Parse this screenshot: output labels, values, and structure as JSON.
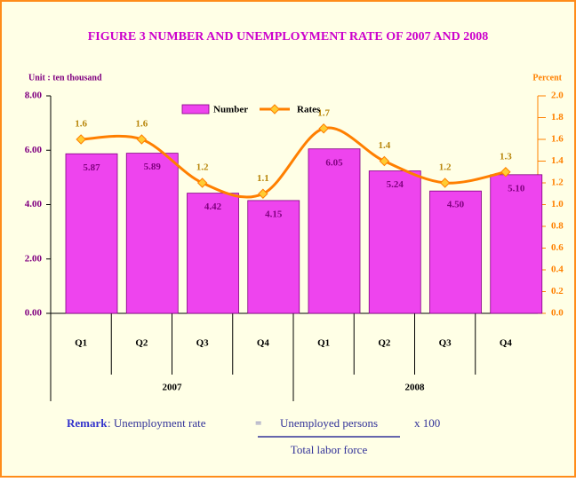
{
  "chart_data": {
    "type": "bar_line",
    "title": "FIGURE 3 NUMBER AND UNEMPLOYMENT RATE OF 2007 AND 2008",
    "y_axis_label": "Unit : ten thousand",
    "y2_axis_label": "Percent",
    "categories": [
      "Q1",
      "Q2",
      "Q3",
      "Q4",
      "Q1",
      "Q2",
      "Q3",
      "Q4"
    ],
    "groups": [
      "2007",
      "2008"
    ],
    "series": [
      {
        "name": "Number",
        "type": "bar",
        "color": "#ee44ee",
        "values": [
          5.87,
          5.89,
          4.42,
          4.15,
          6.05,
          5.24,
          4.5,
          5.1
        ],
        "value_labels": [
          "5.87",
          "5.89",
          "4.42",
          "4.15",
          "6.05",
          "5.24",
          "4.50",
          "5.10"
        ]
      },
      {
        "name": "Rates",
        "type": "line",
        "axis": "y2",
        "color": "#ff7f00",
        "values": [
          1.6,
          1.6,
          1.2,
          1.1,
          1.7,
          1.4,
          1.2,
          1.3
        ]
      }
    ],
    "ylim": [
      0,
      8
    ],
    "yticks": [
      {
        "value": 0,
        "label": "0.00"
      },
      {
        "value": 2,
        "label": "2.00"
      },
      {
        "value": 4,
        "label": "4.00"
      },
      {
        "value": 6,
        "label": "6.00"
      },
      {
        "value": 8,
        "label": "8.00"
      }
    ],
    "y2lim": [
      0,
      2
    ],
    "y2ticks": [
      {
        "value": 0,
        "label": "0.0"
      },
      0.2,
      0.4,
      0.6,
      0.8,
      {
        "value": 1,
        "label": "1.0"
      },
      1.2,
      1.4,
      1.6,
      1.8,
      {
        "value": 2,
        "label": "2.0"
      }
    ],
    "remark": {
      "label": "Remark",
      "text": ": Unemployment rate",
      "equals": "=",
      "numerator": "Unemployed persons",
      "multiplier": "x  100",
      "denominator": "Total labor force"
    }
  }
}
